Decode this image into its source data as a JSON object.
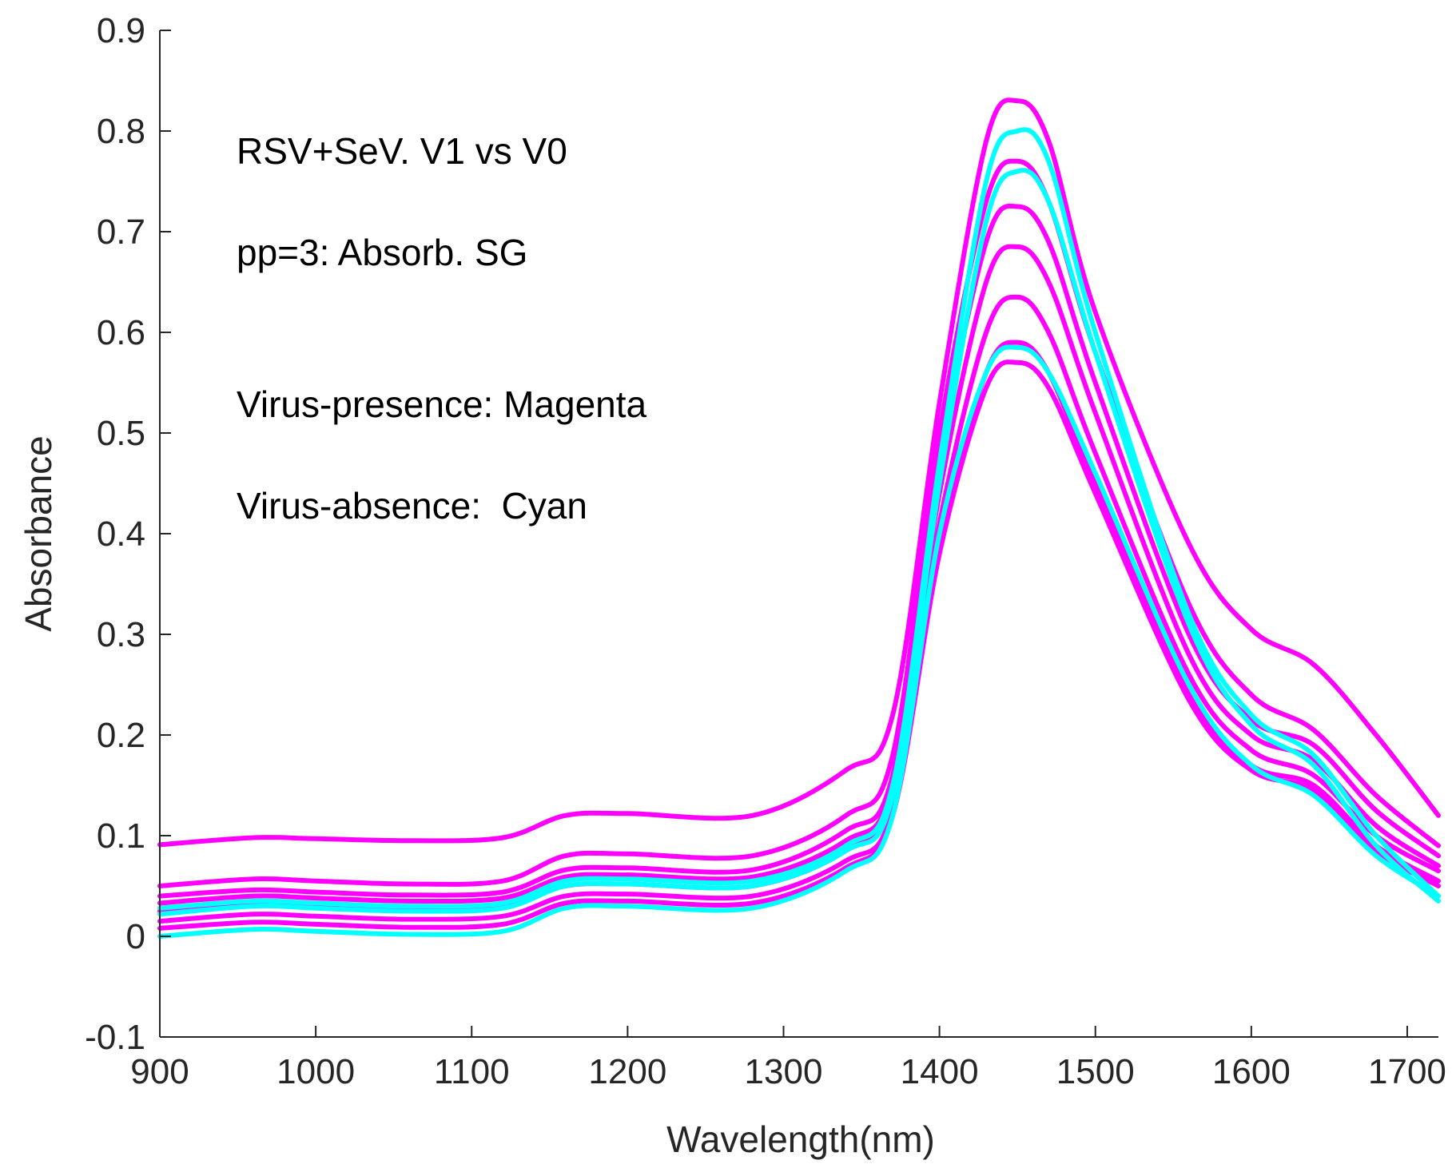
{
  "chart_data": {
    "type": "line",
    "xlabel": "Wavelength(nm)",
    "ylabel": "Absorbance",
    "xlim": [
      900,
      1720
    ],
    "ylim": [
      -0.1,
      0.9
    ],
    "xticks": [
      900,
      1000,
      1100,
      1200,
      1300,
      1400,
      1500,
      1600,
      1700
    ],
    "yticks": [
      -0.1,
      0,
      0.1,
      0.2,
      0.3,
      0.4,
      0.5,
      0.6,
      0.7,
      0.8,
      0.9
    ],
    "annotations": [
      "RSV+SeV. V1 vs V0",
      "pp=3: Absorb. SG",
      "Virus-presence: Magenta",
      "Virus-absence:  Cyan"
    ],
    "colors": {
      "virus_presence": "#ff00ff",
      "virus_absence": "#00ffff",
      "axis": "#262626"
    },
    "x": [
      900,
      960,
      1000,
      1060,
      1120,
      1160,
      1200,
      1280,
      1340,
      1370,
      1400,
      1430,
      1450,
      1470,
      1500,
      1560,
      1600,
      1640,
      1680,
      1720
    ],
    "series": [
      {
        "name": "Virus-presence",
        "color": "#ff00ff",
        "values": [
          0.091,
          0.098,
          0.097,
          0.095,
          0.098,
          0.12,
          0.122,
          0.12,
          0.165,
          0.22,
          0.53,
          0.79,
          0.83,
          0.79,
          0.62,
          0.39,
          0.305,
          0.27,
          0.2,
          0.12
        ]
      },
      {
        "name": "Virus-presence",
        "color": "#ff00ff",
        "values": [
          0.05,
          0.057,
          0.055,
          0.052,
          0.055,
          0.08,
          0.082,
          0.08,
          0.12,
          0.18,
          0.5,
          0.73,
          0.77,
          0.73,
          0.58,
          0.33,
          0.24,
          0.205,
          0.14,
          0.09
        ]
      },
      {
        "name": "Virus-presence",
        "color": "#ff00ff",
        "values": [
          0.04,
          0.046,
          0.044,
          0.041,
          0.044,
          0.066,
          0.068,
          0.066,
          0.105,
          0.16,
          0.47,
          0.69,
          0.725,
          0.69,
          0.55,
          0.3,
          0.215,
          0.19,
          0.125,
          0.08
        ]
      },
      {
        "name": "Virus-presence",
        "color": "#ff00ff",
        "values": [
          0.033,
          0.04,
          0.038,
          0.035,
          0.038,
          0.059,
          0.061,
          0.059,
          0.095,
          0.15,
          0.44,
          0.65,
          0.685,
          0.65,
          0.52,
          0.28,
          0.2,
          0.175,
          0.11,
          0.07
        ]
      },
      {
        "name": "Virus-presence",
        "color": "#ff00ff",
        "values": [
          0.025,
          0.032,
          0.03,
          0.027,
          0.03,
          0.05,
          0.052,
          0.05,
          0.085,
          0.14,
          0.41,
          0.6,
          0.635,
          0.6,
          0.48,
          0.26,
          0.185,
          0.16,
          0.1,
          0.065
        ]
      },
      {
        "name": "Virus-presence",
        "color": "#ff00ff",
        "values": [
          0.015,
          0.022,
          0.02,
          0.017,
          0.02,
          0.04,
          0.042,
          0.04,
          0.075,
          0.125,
          0.39,
          0.56,
          0.59,
          0.56,
          0.45,
          0.24,
          0.17,
          0.15,
          0.09,
          0.055
        ]
      },
      {
        "name": "Virus-presence",
        "color": "#ff00ff",
        "values": [
          0.008,
          0.014,
          0.012,
          0.009,
          0.012,
          0.033,
          0.035,
          0.033,
          0.068,
          0.12,
          0.38,
          0.545,
          0.57,
          0.545,
          0.44,
          0.235,
          0.165,
          0.145,
          0.085,
          0.05
        ]
      },
      {
        "name": "Virus-absence",
        "color": "#00ffff",
        "values": [
          0.028,
          0.035,
          0.033,
          0.03,
          0.033,
          0.055,
          0.057,
          0.055,
          0.09,
          0.15,
          0.47,
          0.75,
          0.8,
          0.77,
          0.6,
          0.32,
          0.22,
          0.18,
          0.1,
          0.04
        ]
      },
      {
        "name": "Virus-absence",
        "color": "#00ffff",
        "values": [
          0.022,
          0.03,
          0.028,
          0.025,
          0.028,
          0.05,
          0.052,
          0.05,
          0.085,
          0.14,
          0.45,
          0.71,
          0.76,
          0.73,
          0.58,
          0.31,
          0.21,
          0.17,
          0.09,
          0.035
        ]
      },
      {
        "name": "Virus-absence",
        "color": "#00ffff",
        "values": [
          0.0,
          0.007,
          0.005,
          0.002,
          0.005,
          0.028,
          0.03,
          0.028,
          0.065,
          0.12,
          0.4,
          0.56,
          0.585,
          0.56,
          0.46,
          0.25,
          0.17,
          0.14,
          0.08,
          0.04
        ]
      }
    ]
  }
}
